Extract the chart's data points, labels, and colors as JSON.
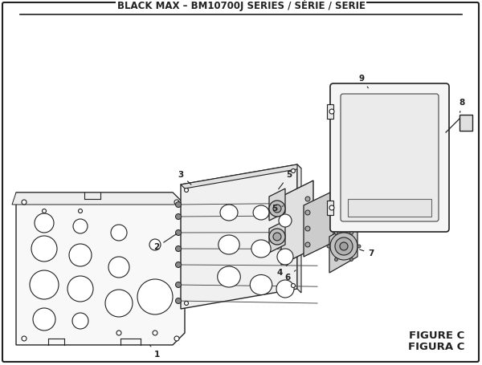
{
  "title": "BLACK MAX – BM10700J SERIES / SÉRIE / SERIE",
  "figure_label": "FIGURE C",
  "figura_label": "FIGURA C",
  "bg_color": "#ffffff",
  "border_color": "#000000",
  "title_fontsize": 8.5,
  "figure_label_fontsize": 9.5
}
